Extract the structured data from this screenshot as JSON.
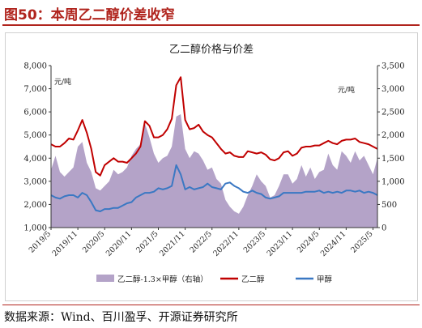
{
  "figure": {
    "title": "图50：本周乙二醇价差收窄",
    "source": "数据来源：Wind、百川盈孚、开源证券研究所"
  },
  "colors": {
    "accent": "#b0241d",
    "spread_fill": "#b4a3c8",
    "ethylene_glycol_line": "#c00000",
    "methanol_line": "#3a78c3"
  },
  "chart_data": {
    "type": "line",
    "title": "乙二醇价格与价差",
    "left_unit": "元/吨",
    "right_unit": "元/吨",
    "left_axis": {
      "min": 1000,
      "max": 8000,
      "ticks": [
        "1,000",
        "2,000",
        "3,000",
        "4,000",
        "5,000",
        "6,000",
        "7,000",
        "8,000"
      ]
    },
    "right_axis": {
      "min": 0,
      "max": 3500,
      "ticks": [
        "0",
        "500",
        "1,000",
        "1,500",
        "2,000",
        "2,500",
        "3,000",
        "3,500"
      ]
    },
    "x_axis": {
      "min": "2019-05",
      "max": "2025-06",
      "tick_labels": [
        "2019/5",
        "2019/11",
        "2020/5",
        "2020/11",
        "2021/5",
        "2021/11",
        "2022/5",
        "2022/11",
        "2023/5",
        "2023/11",
        "2024/5",
        "2024/11",
        "2025/5"
      ],
      "tick_dates": [
        "2019-05",
        "2019-11",
        "2020-05",
        "2020-11",
        "2021-05",
        "2021-11",
        "2022-05",
        "2022-11",
        "2023-05",
        "2023-11",
        "2024-05",
        "2024-11",
        "2025-05"
      ]
    },
    "legend_position": "bottom",
    "grid": false,
    "series": [
      {
        "name": "乙二醇-1.3×甲醇（右轴）",
        "kind": "area",
        "axis": "right",
        "x": [
          "2019-05",
          "2019-06",
          "2019-07",
          "2019-08",
          "2019-09",
          "2019-10",
          "2019-11",
          "2019-12",
          "2020-01",
          "2020-02",
          "2020-03",
          "2020-04",
          "2020-05",
          "2020-06",
          "2020-07",
          "2020-08",
          "2020-09",
          "2020-10",
          "2020-11",
          "2020-12",
          "2021-01",
          "2021-02",
          "2021-03",
          "2021-04",
          "2021-05",
          "2021-06",
          "2021-07",
          "2021-08",
          "2021-09",
          "2021-10",
          "2021-11",
          "2021-12",
          "2022-01",
          "2022-02",
          "2022-03",
          "2022-04",
          "2022-05",
          "2022-06",
          "2022-07",
          "2022-08",
          "2022-09",
          "2022-10",
          "2022-11",
          "2022-12",
          "2023-01",
          "2023-02",
          "2023-03",
          "2023-04",
          "2023-05",
          "2023-06",
          "2023-07",
          "2023-08",
          "2023-09",
          "2023-10",
          "2023-11",
          "2023-12",
          "2024-01",
          "2024-02",
          "2024-03",
          "2024-04",
          "2024-05",
          "2024-06",
          "2024-07",
          "2024-08",
          "2024-09",
          "2024-10",
          "2024-11",
          "2024-12",
          "2025-01",
          "2025-02",
          "2025-03",
          "2025-04",
          "2025-05",
          "2025-06"
        ],
        "values": [
          1250,
          1550,
          1200,
          1100,
          1200,
          1300,
          1750,
          1850,
          1400,
          1200,
          850,
          800,
          900,
          1000,
          1250,
          1150,
          1200,
          1300,
          1550,
          1700,
          1800,
          2250,
          1950,
          1600,
          1400,
          1500,
          1550,
          1750,
          2400,
          2450,
          1700,
          1500,
          1650,
          1600,
          1450,
          1250,
          1300,
          1050,
          950,
          600,
          450,
          350,
          300,
          450,
          700,
          900,
          1150,
          1000,
          900,
          650,
          700,
          900,
          1150,
          1150,
          950,
          1050,
          1350,
          1100,
          1300,
          1050,
          1200,
          1250,
          1600,
          1350,
          1250,
          1650,
          1550,
          1400,
          1650,
          1450,
          1550,
          1350,
          1150,
          1500
        ]
      },
      {
        "name": "乙二醇",
        "kind": "line",
        "axis": "left",
        "x": [
          "2019-05",
          "2019-06",
          "2019-07",
          "2019-08",
          "2019-09",
          "2019-10",
          "2019-11",
          "2019-12",
          "2020-01",
          "2020-02",
          "2020-03",
          "2020-04",
          "2020-05",
          "2020-06",
          "2020-07",
          "2020-08",
          "2020-09",
          "2020-10",
          "2020-11",
          "2020-12",
          "2021-01",
          "2021-02",
          "2021-03",
          "2021-04",
          "2021-05",
          "2021-06",
          "2021-07",
          "2021-08",
          "2021-09",
          "2021-10",
          "2021-11",
          "2021-12",
          "2022-01",
          "2022-02",
          "2022-03",
          "2022-04",
          "2022-05",
          "2022-06",
          "2022-07",
          "2022-08",
          "2022-09",
          "2022-10",
          "2022-11",
          "2022-12",
          "2023-01",
          "2023-02",
          "2023-03",
          "2023-04",
          "2023-05",
          "2023-06",
          "2023-07",
          "2023-08",
          "2023-09",
          "2023-10",
          "2023-11",
          "2023-12",
          "2024-01",
          "2024-02",
          "2024-03",
          "2024-04",
          "2024-05",
          "2024-06",
          "2024-07",
          "2024-08",
          "2024-09",
          "2024-10",
          "2024-11",
          "2024-12",
          "2025-01",
          "2025-02",
          "2025-03",
          "2025-04",
          "2025-05",
          "2025-06"
        ],
        "values": [
          4600,
          4500,
          4500,
          4650,
          4850,
          4800,
          5200,
          5650,
          5100,
          4400,
          3400,
          3250,
          3700,
          3850,
          4000,
          3850,
          3850,
          3800,
          4000,
          4200,
          4500,
          5600,
          5400,
          4900,
          4900,
          5000,
          5250,
          5700,
          7150,
          7500,
          5650,
          5250,
          5300,
          5450,
          5150,
          5000,
          4900,
          4650,
          4400,
          4200,
          4250,
          4100,
          4050,
          4050,
          4300,
          4250,
          4200,
          4250,
          4150,
          3950,
          3900,
          4000,
          4250,
          4300,
          4100,
          4200,
          4450,
          4500,
          4500,
          4550,
          4550,
          4650,
          4750,
          4650,
          4600,
          4750,
          4800,
          4800,
          4850,
          4700,
          4650,
          4600,
          4500,
          4400
        ]
      },
      {
        "name": "甲醇",
        "kind": "line",
        "axis": "left",
        "x": [
          "2019-05",
          "2019-06",
          "2019-07",
          "2019-08",
          "2019-09",
          "2019-10",
          "2019-11",
          "2019-12",
          "2020-01",
          "2020-02",
          "2020-03",
          "2020-04",
          "2020-05",
          "2020-06",
          "2020-07",
          "2020-08",
          "2020-09",
          "2020-10",
          "2020-11",
          "2020-12",
          "2021-01",
          "2021-02",
          "2021-03",
          "2021-04",
          "2021-05",
          "2021-06",
          "2021-07",
          "2021-08",
          "2021-09",
          "2021-10",
          "2021-11",
          "2021-12",
          "2022-01",
          "2022-02",
          "2022-03",
          "2022-04",
          "2022-05",
          "2022-06",
          "2022-07",
          "2022-08",
          "2022-09",
          "2022-10",
          "2022-11",
          "2022-12",
          "2023-01",
          "2023-02",
          "2023-03",
          "2023-04",
          "2023-05",
          "2023-06",
          "2023-07",
          "2023-08",
          "2023-09",
          "2023-10",
          "2023-11",
          "2023-12",
          "2024-01",
          "2024-02",
          "2024-03",
          "2024-04",
          "2024-05",
          "2024-06",
          "2024-07",
          "2024-08",
          "2024-09",
          "2024-10",
          "2024-11",
          "2024-12",
          "2025-01",
          "2025-02",
          "2025-03",
          "2025-04",
          "2025-05",
          "2025-06"
        ],
        "values": [
          2400,
          2300,
          2250,
          2350,
          2400,
          2400,
          2300,
          2500,
          2400,
          2100,
          1750,
          1700,
          1800,
          1800,
          1850,
          1850,
          1950,
          2050,
          2100,
          2300,
          2400,
          2500,
          2500,
          2550,
          2700,
          2650,
          2700,
          2800,
          3700,
          3300,
          2650,
          2750,
          2650,
          2700,
          2750,
          2900,
          2750,
          2700,
          2650,
          2900,
          2950,
          2800,
          2700,
          2550,
          2500,
          2600,
          2500,
          2450,
          2300,
          2250,
          2300,
          2350,
          2500,
          2500,
          2500,
          2500,
          2500,
          2550,
          2550,
          2550,
          2600,
          2500,
          2550,
          2500,
          2550,
          2500,
          2600,
          2600,
          2550,
          2600,
          2500,
          2550,
          2500,
          2400
        ]
      }
    ]
  }
}
